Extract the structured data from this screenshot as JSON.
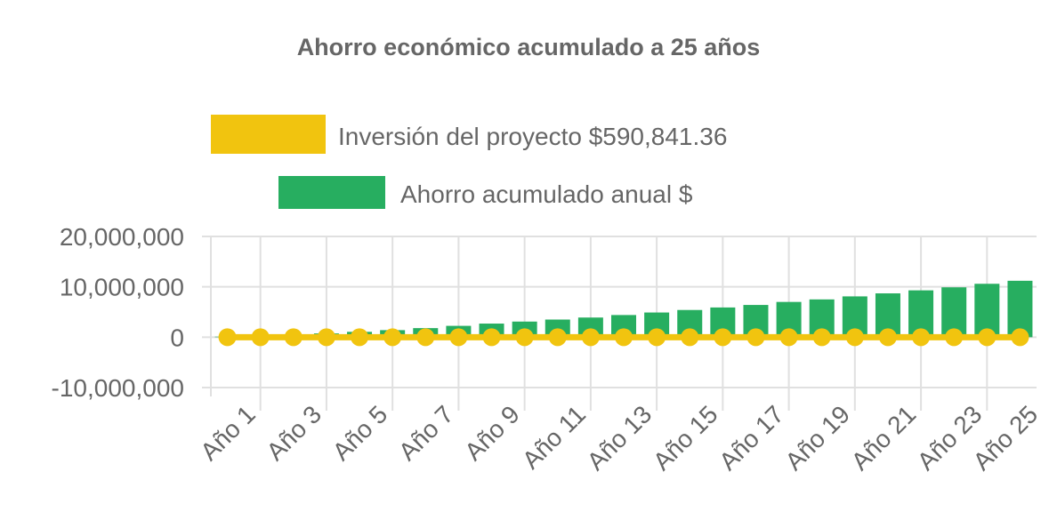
{
  "chart_data": {
    "type": "bar",
    "title": "Ahorro económico acumulado a 25 años",
    "categories": [
      "Año 1",
      "Año 2",
      "Año 3",
      "Año 4",
      "Año 5",
      "Año 6",
      "Año 7",
      "Año 8",
      "Año 9",
      "Año 10",
      "Año 11",
      "Año 12",
      "Año 13",
      "Año 14",
      "Año 15",
      "Año 16",
      "Año 17",
      "Año 18",
      "Año 19",
      "Año 20",
      "Año 21",
      "Año 22",
      "Año 23",
      "Año 24",
      "Año 25"
    ],
    "x_tick_labels": [
      "Año 1",
      "Año 3",
      "Año 5",
      "Año 7",
      "Año 9",
      "Año 11",
      "Año 13",
      "Año 15",
      "Año 17",
      "Año 19",
      "Año 21",
      "Año 23",
      "Año 25"
    ],
    "series": [
      {
        "name": "Inversión del proyecto $590,841.36",
        "type": "line",
        "color": "#f1c40f",
        "values": [
          0,
          0,
          0,
          0,
          0,
          0,
          0,
          0,
          0,
          0,
          0,
          0,
          0,
          0,
          0,
          0,
          0,
          0,
          0,
          0,
          0,
          0,
          0,
          0,
          0
        ]
      },
      {
        "name": "Ahorro acumulado anual $",
        "type": "bar",
        "color": "#27ae60",
        "values": [
          100000,
          300000,
          500000,
          750000,
          1060000,
          1400000,
          1800000,
          2250000,
          2700000,
          3100000,
          3500000,
          3900000,
          4400000,
          4900000,
          5400000,
          5900000,
          6400000,
          7000000,
          7500000,
          8100000,
          8700000,
          9300000,
          9900000,
          10600000,
          11200000
        ]
      }
    ],
    "y_ticks": [
      "20,000,000",
      "10,000,000",
      "0",
      "-10,000,000"
    ],
    "ylim": [
      -10000000,
      20000000
    ],
    "grid": true,
    "legend_position": "top"
  }
}
